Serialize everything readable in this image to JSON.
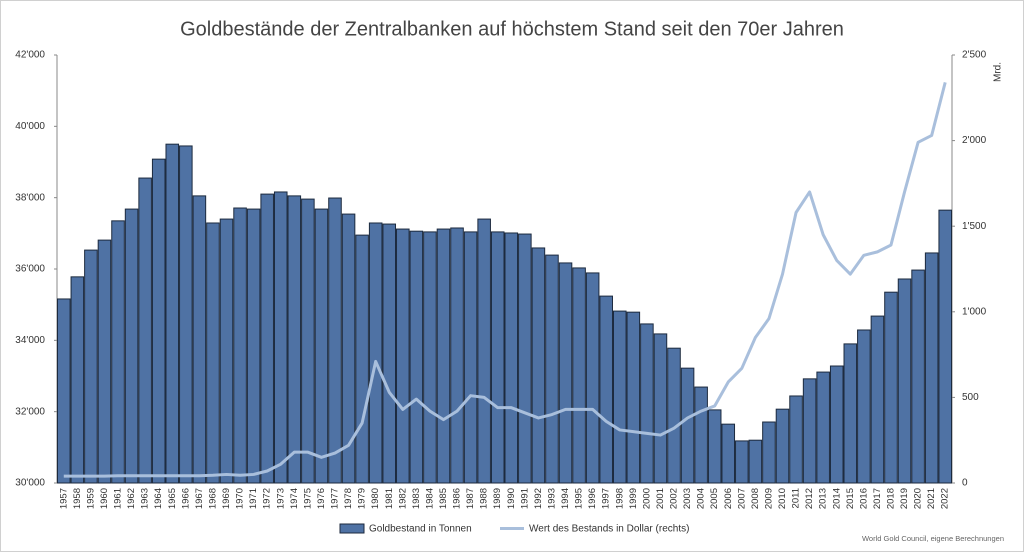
{
  "chart_data": {
    "type": "bar",
    "title": "Goldbestände der Zentralbanken auf höchstem Stand seit den 70er Jahren",
    "y2_label": "Mrd.",
    "source": "World Gold Council, eigene Berechnungen",
    "categories": [
      "1957",
      "1958",
      "1959",
      "1960",
      "1961",
      "1962",
      "1963",
      "1964",
      "1965",
      "1966",
      "1967",
      "1968",
      "1969",
      "1970",
      "1971",
      "1972",
      "1973",
      "1974",
      "1975",
      "1976",
      "1977",
      "1978",
      "1979",
      "1980",
      "1981",
      "1982",
      "1983",
      "1984",
      "1985",
      "1986",
      "1987",
      "1988",
      "1989",
      "1990",
      "1991",
      "1992",
      "1993",
      "1994",
      "1995",
      "1996",
      "1997",
      "1998",
      "1999",
      "2000",
      "2001",
      "2002",
      "2003",
      "2004",
      "2005",
      "2006",
      "2007",
      "2008",
      "2009",
      "2010",
      "2011",
      "2012",
      "2013",
      "2014",
      "2015",
      "2016",
      "2017",
      "2018",
      "2019",
      "2020",
      "2021",
      "2022"
    ],
    "series": [
      {
        "name": "Goldbestand in Tonnen",
        "type": "bar",
        "color": "#4f72a4",
        "edge": "#1c2a3e",
        "values": [
          35160,
          35780,
          36530,
          36810,
          37350,
          37680,
          38550,
          39080,
          39500,
          39450,
          38050,
          37290,
          37400,
          37710,
          37680,
          38100,
          38160,
          38050,
          37960,
          37680,
          37990,
          37540,
          36950,
          37290,
          37260,
          37120,
          37060,
          37040,
          37120,
          37150,
          37040,
          37400,
          37040,
          37010,
          36980,
          36590,
          36390,
          36170,
          36030,
          35890,
          35240,
          34820,
          34790,
          34460,
          34180,
          33780,
          33220,
          32690,
          32050,
          31650,
          31180,
          31200,
          31710,
          32070,
          32440,
          32920,
          33110,
          33280,
          33900,
          34290,
          34680,
          35350,
          35720,
          35970,
          36450,
          37650
        ]
      },
      {
        "name": "Wert des Bestands in Dollar (rechts)",
        "type": "line",
        "axis": "y2",
        "color": "#a9bfdc",
        "values": [
          40,
          40,
          40,
          40,
          42,
          42,
          42,
          42,
          42,
          42,
          42,
          45,
          50,
          45,
          50,
          70,
          110,
          180,
          180,
          150,
          175,
          220,
          350,
          710,
          530,
          430,
          490,
          420,
          370,
          420,
          510,
          500,
          440,
          440,
          410,
          380,
          400,
          430,
          430,
          430,
          360,
          310,
          300,
          290,
          280,
          320,
          380,
          420,
          450,
          590,
          670,
          850,
          960,
          1220,
          1580,
          1700,
          1450,
          1300,
          1220,
          1330,
          1350,
          1390,
          1700,
          1990,
          2030,
          2340
        ]
      }
    ],
    "ylim": [
      30000,
      42000
    ],
    "yticks": [
      {
        "value": 30000,
        "label": "30'000"
      },
      {
        "value": 32000,
        "label": "32'000"
      },
      {
        "value": 34000,
        "label": "34'000"
      },
      {
        "value": 36000,
        "label": "36'000"
      },
      {
        "value": 38000,
        "label": "38'000"
      },
      {
        "value": 40000,
        "label": "40'000"
      },
      {
        "value": 42000,
        "label": "42'000"
      }
    ],
    "y2lim": [
      0,
      2500
    ],
    "y2ticks": [
      0,
      500,
      {
        "value": 1000,
        "label": "1'000"
      },
      {
        "value": 1500,
        "label": "1'500"
      },
      {
        "value": 2000,
        "label": "2'000"
      },
      {
        "value": 2500,
        "label": "2'500"
      }
    ],
    "legend": "bottom"
  }
}
